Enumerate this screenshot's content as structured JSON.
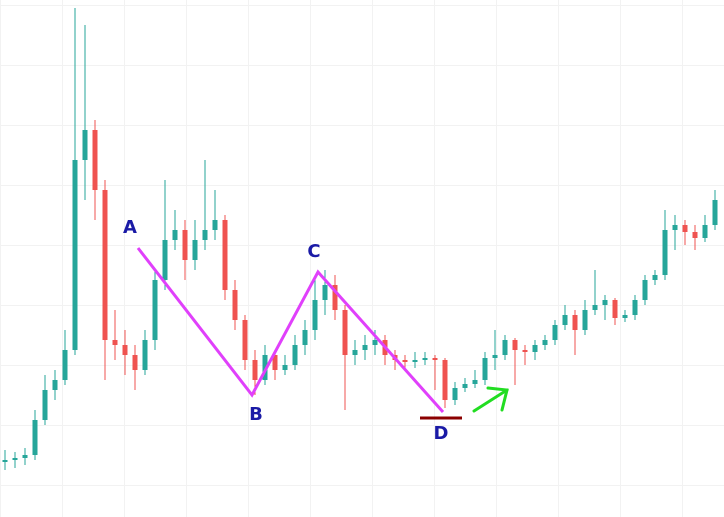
{
  "chart_data": {
    "type": "candlestick",
    "up_color": "#26a69a",
    "down_color": "#ef5350",
    "xlim": [
      -0.5,
      71.9
    ],
    "ylim": [
      3,
      520
    ],
    "candles": [
      [
        58,
        70,
        50,
        60
      ],
      [
        60,
        68,
        52,
        62
      ],
      [
        62,
        72,
        55,
        65
      ],
      [
        65,
        110,
        60,
        100
      ],
      [
        100,
        145,
        95,
        130
      ],
      [
        130,
        150,
        120,
        140
      ],
      [
        140,
        190,
        135,
        170
      ],
      [
        170,
        512,
        165,
        360
      ],
      [
        360,
        495,
        320,
        390
      ],
      [
        390,
        400,
        300,
        330
      ],
      [
        330,
        340,
        140,
        180
      ],
      [
        180,
        210,
        160,
        175
      ],
      [
        175,
        190,
        145,
        165
      ],
      [
        165,
        175,
        130,
        150
      ],
      [
        150,
        190,
        145,
        180
      ],
      [
        180,
        250,
        170,
        240
      ],
      [
        240,
        340,
        230,
        280
      ],
      [
        280,
        310,
        270,
        290
      ],
      [
        290,
        300,
        240,
        260
      ],
      [
        260,
        300,
        250,
        280
      ],
      [
        280,
        360,
        270,
        290
      ],
      [
        290,
        330,
        280,
        300
      ],
      [
        300,
        305,
        220,
        230
      ],
      [
        230,
        240,
        190,
        200
      ],
      [
        200,
        205,
        150,
        160
      ],
      [
        160,
        170,
        125,
        140
      ],
      [
        140,
        175,
        135,
        165
      ],
      [
        165,
        170,
        140,
        150
      ],
      [
        150,
        165,
        145,
        155
      ],
      [
        155,
        185,
        150,
        175
      ],
      [
        175,
        200,
        165,
        190
      ],
      [
        190,
        240,
        180,
        220
      ],
      [
        220,
        250,
        205,
        235
      ],
      [
        235,
        245,
        200,
        210
      ],
      [
        210,
        215,
        110,
        165
      ],
      [
        165,
        180,
        155,
        170
      ],
      [
        170,
        185,
        160,
        175
      ],
      [
        175,
        190,
        165,
        180
      ],
      [
        180,
        185,
        155,
        165
      ],
      [
        165,
        170,
        150,
        160
      ],
      [
        160,
        165,
        150,
        158
      ],
      [
        158,
        168,
        152,
        160
      ],
      [
        160,
        168,
        155,
        162
      ],
      [
        162,
        165,
        130,
        160
      ],
      [
        160,
        162,
        112,
        120
      ],
      [
        120,
        138,
        115,
        132
      ],
      [
        132,
        142,
        128,
        136
      ],
      [
        136,
        150,
        132,
        140
      ],
      [
        140,
        168,
        135,
        162
      ],
      [
        162,
        190,
        150,
        165
      ],
      [
        165,
        185,
        160,
        180
      ],
      [
        180,
        182,
        135,
        170
      ],
      [
        170,
        175,
        155,
        168
      ],
      [
        168,
        180,
        160,
        175
      ],
      [
        175,
        185,
        170,
        180
      ],
      [
        180,
        200,
        175,
        195
      ],
      [
        195,
        215,
        190,
        205
      ],
      [
        205,
        210,
        165,
        190
      ],
      [
        190,
        220,
        185,
        210
      ],
      [
        210,
        250,
        205,
        215
      ],
      [
        215,
        225,
        200,
        220
      ],
      [
        220,
        222,
        195,
        202
      ],
      [
        202,
        210,
        198,
        205
      ],
      [
        205,
        225,
        200,
        220
      ],
      [
        220,
        245,
        215,
        240
      ],
      [
        240,
        250,
        235,
        245
      ],
      [
        245,
        310,
        240,
        290
      ],
      [
        290,
        305,
        270,
        295
      ],
      [
        295,
        300,
        275,
        288
      ],
      [
        288,
        295,
        270,
        282
      ],
      [
        282,
        305,
        278,
        295
      ],
      [
        295,
        330,
        290,
        320
      ]
    ],
    "pattern": {
      "color": "#e040fb",
      "label_color": "#1a1aa6",
      "points": [
        {
          "label": "A",
          "x": 13.3,
          "y": 272
        },
        {
          "label": "B",
          "x": 24.7,
          "y": 125
        },
        {
          "label": "C",
          "x": 31.3,
          "y": 248
        },
        {
          "label": "D",
          "x": 43.8,
          "y": 108
        }
      ]
    }
  }
}
